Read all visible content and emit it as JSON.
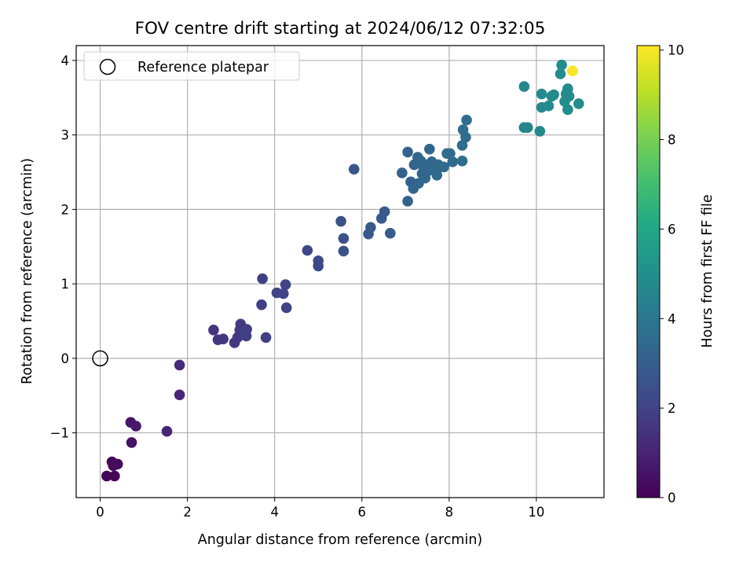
{
  "chart_data": {
    "type": "scatter",
    "title": "FOV centre drift starting at 2024/06/12 07:32:05",
    "xlabel": "Angular distance from reference (arcmin)",
    "ylabel": "Rotation from reference (arcmin)",
    "xlim": [
      -0.55,
      11.55
    ],
    "ylim": [
      -1.87,
      4.2
    ],
    "xticks": [
      0,
      2,
      4,
      6,
      8,
      10
    ],
    "yticks": [
      -1,
      0,
      1,
      2,
      3,
      4
    ],
    "ytick_labels": [
      "−1",
      "0",
      "1",
      "2",
      "3",
      "4"
    ],
    "grid": true,
    "legend": {
      "position": "upper-left",
      "entries": [
        "Reference platepar"
      ]
    },
    "reference_point": {
      "x": 0,
      "y": 0
    },
    "colorbar": {
      "label": "Hours from first FF file",
      "colormap": "viridis",
      "range": [
        0,
        10.1
      ],
      "ticks": [
        0,
        2,
        4,
        6,
        8,
        10
      ]
    },
    "points": [
      [
        0.15,
        -1.58,
        0.1
      ],
      [
        0.33,
        -1.58,
        0.15
      ],
      [
        0.27,
        -1.39,
        0.2
      ],
      [
        0.4,
        -1.42,
        0.25
      ],
      [
        0.3,
        -1.44,
        0.3
      ],
      [
        0.72,
        -1.13,
        0.5
      ],
      [
        0.7,
        -0.86,
        0.6
      ],
      [
        0.82,
        -0.91,
        0.7
      ],
      [
        1.53,
        -0.98,
        1.0
      ],
      [
        1.82,
        -0.49,
        1.1
      ],
      [
        1.82,
        -0.09,
        1.2
      ],
      [
        2.6,
        0.38,
        1.5
      ],
      [
        2.7,
        0.25,
        1.55
      ],
      [
        2.82,
        0.26,
        1.6
      ],
      [
        3.08,
        0.21,
        1.65
      ],
      [
        3.15,
        0.28,
        1.7
      ],
      [
        3.22,
        0.46,
        1.75
      ],
      [
        3.2,
        0.38,
        1.75
      ],
      [
        3.28,
        0.35,
        1.8
      ],
      [
        3.36,
        0.39,
        1.85
      ],
      [
        3.35,
        0.3,
        1.85
      ],
      [
        3.8,
        0.28,
        1.9
      ],
      [
        3.7,
        0.72,
        1.9
      ],
      [
        3.72,
        1.07,
        1.9
      ],
      [
        4.05,
        0.88,
        2.0
      ],
      [
        4.2,
        0.87,
        2.0
      ],
      [
        4.25,
        0.99,
        2.0
      ],
      [
        4.27,
        0.68,
        2.0
      ],
      [
        4.75,
        1.45,
        2.2
      ],
      [
        5.0,
        1.31,
        2.25
      ],
      [
        5.0,
        1.24,
        2.25
      ],
      [
        5.52,
        1.84,
        2.5
      ],
      [
        5.58,
        1.61,
        2.5
      ],
      [
        5.58,
        1.44,
        2.5
      ],
      [
        5.82,
        2.54,
        2.7
      ],
      [
        6.15,
        1.67,
        2.8
      ],
      [
        6.2,
        1.76,
        2.8
      ],
      [
        6.45,
        1.88,
        2.85
      ],
      [
        6.52,
        1.97,
        2.85
      ],
      [
        6.65,
        1.68,
        2.9
      ],
      [
        7.05,
        2.77,
        3.2
      ],
      [
        6.92,
        2.49,
        3.2
      ],
      [
        7.05,
        2.11,
        3.2
      ],
      [
        7.12,
        2.37,
        3.2
      ],
      [
        7.18,
        2.28,
        3.25
      ],
      [
        7.2,
        2.6,
        3.25
      ],
      [
        7.28,
        2.7,
        3.25
      ],
      [
        7.3,
        2.35,
        3.3
      ],
      [
        7.35,
        2.65,
        3.3
      ],
      [
        7.38,
        2.48,
        3.3
      ],
      [
        7.42,
        2.55,
        3.3
      ],
      [
        7.45,
        2.42,
        3.35
      ],
      [
        7.5,
        2.6,
        3.35
      ],
      [
        7.52,
        2.52,
        3.35
      ],
      [
        7.55,
        2.81,
        3.35
      ],
      [
        7.6,
        2.64,
        3.4
      ],
      [
        7.62,
        2.55,
        3.4
      ],
      [
        7.7,
        2.5,
        3.4
      ],
      [
        7.72,
        2.46,
        3.4
      ],
      [
        7.75,
        2.6,
        3.45
      ],
      [
        7.88,
        2.57,
        3.5
      ],
      [
        7.95,
        2.75,
        3.5
      ],
      [
        8.02,
        2.75,
        3.5
      ],
      [
        8.08,
        2.64,
        3.5
      ],
      [
        8.3,
        2.65,
        3.6
      ],
      [
        8.3,
        2.86,
        3.6
      ],
      [
        8.32,
        3.07,
        3.6
      ],
      [
        8.38,
        2.97,
        3.6
      ],
      [
        8.4,
        3.2,
        3.6
      ],
      [
        9.72,
        3.1,
        4.6
      ],
      [
        9.8,
        3.1,
        4.6
      ],
      [
        9.72,
        3.65,
        4.7
      ],
      [
        10.08,
        3.05,
        4.7
      ],
      [
        10.12,
        3.37,
        4.7
      ],
      [
        10.28,
        3.39,
        4.75
      ],
      [
        10.35,
        3.52,
        4.75
      ],
      [
        10.4,
        3.54,
        4.75
      ],
      [
        10.12,
        3.55,
        4.75
      ],
      [
        10.55,
        3.82,
        4.85
      ],
      [
        10.58,
        3.94,
        4.9
      ],
      [
        10.65,
        3.45,
        4.85
      ],
      [
        10.68,
        3.55,
        4.85
      ],
      [
        10.72,
        3.62,
        4.85
      ],
      [
        10.72,
        3.34,
        4.85
      ],
      [
        10.75,
        3.52,
        4.85
      ],
      [
        10.97,
        3.42,
        4.85
      ],
      [
        10.83,
        3.86,
        10.0
      ]
    ]
  }
}
